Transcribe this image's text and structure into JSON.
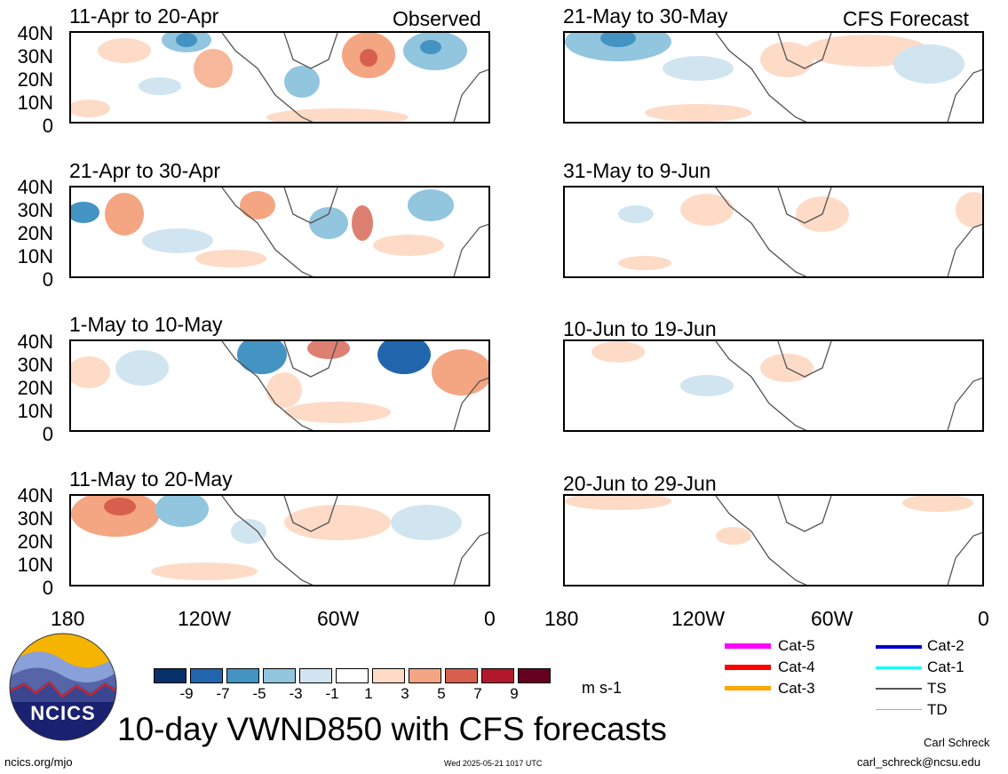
{
  "header": {
    "observed_label": "Observed",
    "forecast_label": "CFS Forecast"
  },
  "observed_panels": [
    {
      "title": "11-Apr to 20-Apr"
    },
    {
      "title": "21-Apr to 30-Apr"
    },
    {
      "title": "1-May to 10-May"
    },
    {
      "title": "11-May to 20-May"
    }
  ],
  "forecast_panels": [
    {
      "title": "21-May to 30-May"
    },
    {
      "title": "31-May to 9-Jun"
    },
    {
      "title": "10-Jun to 19-Jun"
    },
    {
      "title": "20-Jun to 29-Jun"
    }
  ],
  "latitude_labels": [
    "40N",
    "30N",
    "20N",
    "10N",
    "0"
  ],
  "longitude_labels": [
    "180",
    "120W",
    "60W",
    "0"
  ],
  "colorbar": {
    "colors": [
      "#08306b",
      "#2166ac",
      "#4393c3",
      "#92c5de",
      "#d1e5f0",
      "#ffffff",
      "#fddbc7",
      "#f4a582",
      "#d6604d",
      "#b2182b",
      "#67001f"
    ],
    "labels": [
      "-9",
      "-7",
      "-5",
      "-3",
      "-1",
      "1",
      "3",
      "5",
      "7",
      "9"
    ],
    "units": "m s-1"
  },
  "storm_legend": [
    {
      "label": "Cat-5",
      "color": "#ff00ff"
    },
    {
      "label": "Cat-4",
      "color": "#ff0000"
    },
    {
      "label": "Cat-3",
      "color": "#ffa500"
    },
    {
      "label": "Cat-2",
      "color": "#0000cd"
    },
    {
      "label": "Cat-1",
      "color": "#00ffff"
    },
    {
      "label": "TS",
      "color": "#555555"
    },
    {
      "label": "TD",
      "color": "#aaaaaa"
    }
  ],
  "logo": {
    "text": "NCICS"
  },
  "main_title": "10-day VWND850 with CFS forecasts",
  "footer": {
    "url": "ncics.org/mjo",
    "timestamp": "Wed 2025-05-21 1017 UTC",
    "author": "Carl Schreck",
    "email": "carl_schreck@ncsu.edu"
  }
}
